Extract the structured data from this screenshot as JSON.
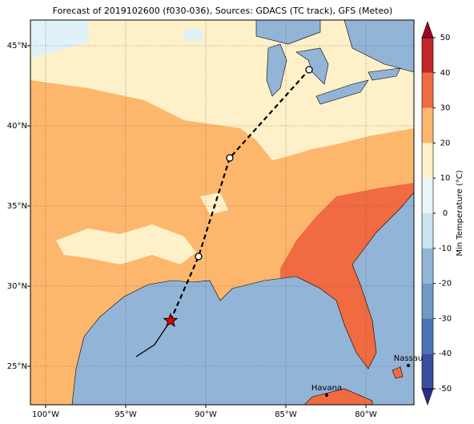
{
  "title": "Forecast of 2019102600 (f030-036), Sources: GDACS (TC track), GFS (Meteo)",
  "map": {
    "lonlim": [
      -100.95,
      -77
    ],
    "latlim": [
      22.6,
      46.6
    ],
    "lon_ticks": [
      {
        "value": -100,
        "label": "100°W"
      },
      {
        "value": -95,
        "label": "95°W"
      },
      {
        "value": -90,
        "label": "90°W"
      },
      {
        "value": -85,
        "label": "85°W"
      },
      {
        "value": -80,
        "label": "80°W"
      }
    ],
    "lat_ticks": [
      {
        "value": 25,
        "label": "25°N"
      },
      {
        "value": 30,
        "label": "30°N"
      },
      {
        "value": 35,
        "label": "35°N"
      },
      {
        "value": 40,
        "label": "40°N"
      },
      {
        "value": 45,
        "label": "45°N"
      }
    ],
    "grid": true
  },
  "colorbar": {
    "label": "Min Temperature (°C)",
    "lim": [
      -50,
      50
    ],
    "ticks": [
      -50,
      -40,
      -30,
      -20,
      -10,
      0,
      10,
      20,
      30,
      40,
      50
    ],
    "colors": [
      "#3a4ea0",
      "#4a74b4",
      "#6f9ac8",
      "#92b4d6",
      "#c9e3ef",
      "#e8f5f9",
      "#fef0c9",
      "#fdb76c",
      "#f06b42",
      "#c0262a"
    ],
    "under_color": "#2c2c8a",
    "over_color": "#a50026"
  },
  "track": {
    "past": {
      "lon": [
        -94.35,
        -93.2,
        -92.2
      ],
      "lat": [
        25.6,
        26.35,
        27.85
      ]
    },
    "forecast": {
      "lon": [
        -92.2,
        -90.45,
        -88.5,
        -83.55
      ],
      "lat": [
        27.85,
        31.85,
        38,
        43.5
      ]
    },
    "current": {
      "lon": -92.2,
      "lat": 27.85
    }
  },
  "places": [
    {
      "name": "Nassau",
      "lon": -77.35,
      "lat": 25.05
    },
    {
      "name": "Havana",
      "lon": -82.45,
      "lat": 23.2
    }
  ]
}
